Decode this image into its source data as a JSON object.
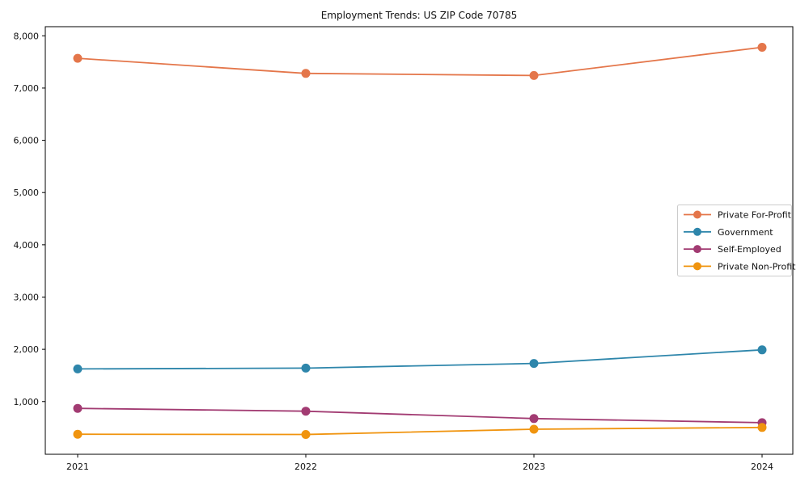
{
  "figure": {
    "background_color": "#ffffff",
    "axis_color": "#000000",
    "legend_border_color": "#cccccc",
    "legend_background_color": "#ffffff"
  },
  "chart_data": {
    "type": "line",
    "title": "Employment Trends: US ZIP Code 70785",
    "xlabel": "",
    "ylabel": "",
    "categories": [
      "2021",
      "2022",
      "2023",
      "2024"
    ],
    "series": [
      {
        "name": "Private For-Profit",
        "color": "#E4764A",
        "values": [
          7570,
          7280,
          7240,
          7780
        ]
      },
      {
        "name": "Government",
        "color": "#2E86AB",
        "values": [
          1625,
          1640,
          1730,
          1990
        ]
      },
      {
        "name": "Self-Employed",
        "color": "#A23B72",
        "values": [
          870,
          815,
          675,
          595
        ]
      },
      {
        "name": "Private Non-Profit",
        "color": "#F0940F",
        "values": [
          375,
          370,
          470,
          505
        ]
      }
    ],
    "ylim": [
      0,
      8180
    ],
    "yticks": [
      1000,
      2000,
      3000,
      4000,
      5000,
      6000,
      7000,
      8000
    ],
    "ytick_format": "thousands-comma",
    "grid": false,
    "legend_position": "center-right",
    "marker": "circle",
    "line_width": 1.8,
    "marker_radius": 5.5
  }
}
